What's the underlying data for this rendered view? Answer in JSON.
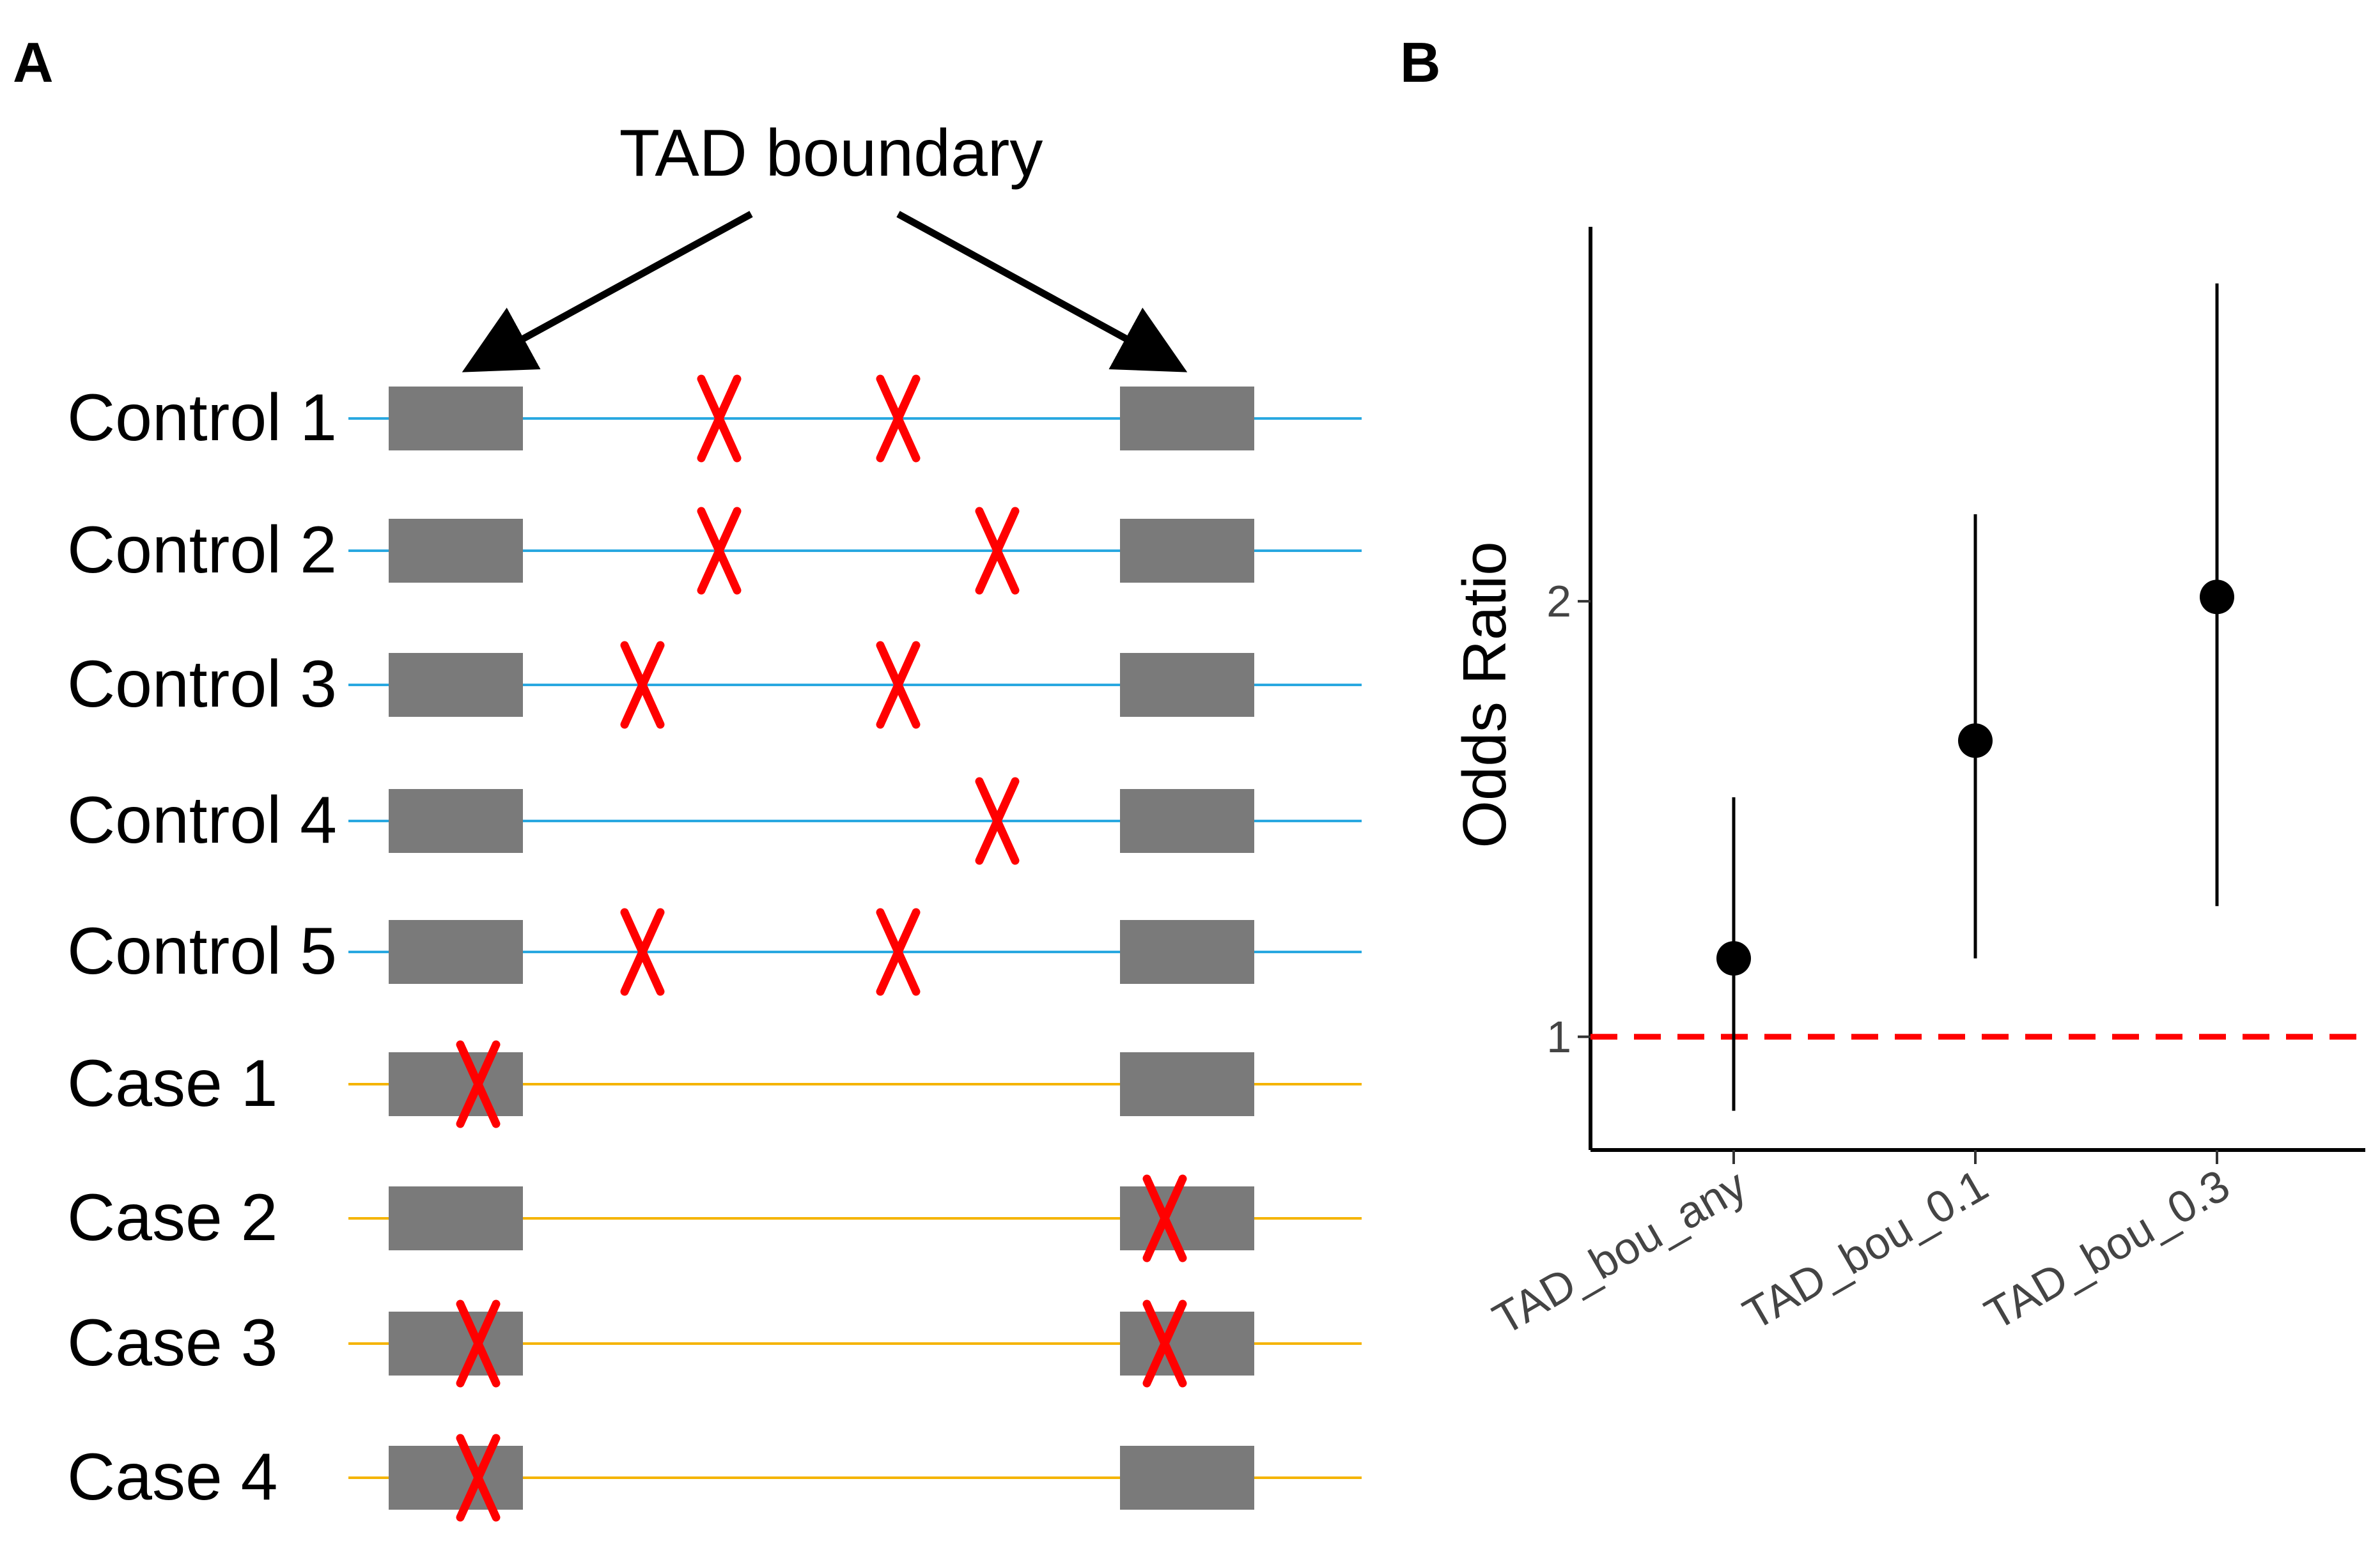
{
  "panel_a": {
    "letter": "A",
    "boundary_title": "TAD boundary",
    "colors": {
      "control_line": "#29a8e0",
      "case_line": "#f5b400",
      "box": "#7a7a7a",
      "mark": "#ff0000"
    },
    "rows": [
      {
        "label": "Control 1",
        "group": "control",
        "marks": [
          "middle-1",
          "middle-2"
        ]
      },
      {
        "label": "Control 2",
        "group": "control",
        "marks": [
          "middle-1",
          "middle-3"
        ]
      },
      {
        "label": "Control 3",
        "group": "control",
        "marks": [
          "middle-0",
          "middle-2"
        ]
      },
      {
        "label": "Control 4",
        "group": "control",
        "marks": [
          "middle-3"
        ]
      },
      {
        "label": "Control 5",
        "group": "control",
        "marks": [
          "middle-0",
          "middle-2"
        ]
      },
      {
        "label": "Case 1",
        "group": "case",
        "marks": [
          "left-boundary"
        ]
      },
      {
        "label": "Case 2",
        "group": "case",
        "marks": [
          "right-boundary"
        ]
      },
      {
        "label": "Case 3",
        "group": "case",
        "marks": [
          "left-boundary",
          "right-boundary"
        ]
      },
      {
        "label": "Case 4",
        "group": "case",
        "marks": [
          "left-boundary"
        ]
      }
    ]
  },
  "panel_b": {
    "letter": "B",
    "chart_data": {
      "type": "scatter",
      "title": "",
      "xlabel": "",
      "ylabel": "Odds Ratio",
      "categories": [
        "TAD_bou_any",
        "TAD_bou_0.1",
        "TAD_bou_0.3"
      ],
      "estimates": [
        1.18,
        1.68,
        2.01
      ],
      "ci_low": [
        0.83,
        1.18,
        1.3
      ],
      "ci_high": [
        1.55,
        2.2,
        2.73
      ],
      "yticks": [
        1,
        2
      ],
      "ylim": [
        0.74,
        2.86
      ],
      "reference_line": {
        "value": 1,
        "color": "#ff0000",
        "style": "dashed"
      },
      "colors": {
        "point": "#000000",
        "errorbar": "#000000"
      }
    }
  }
}
